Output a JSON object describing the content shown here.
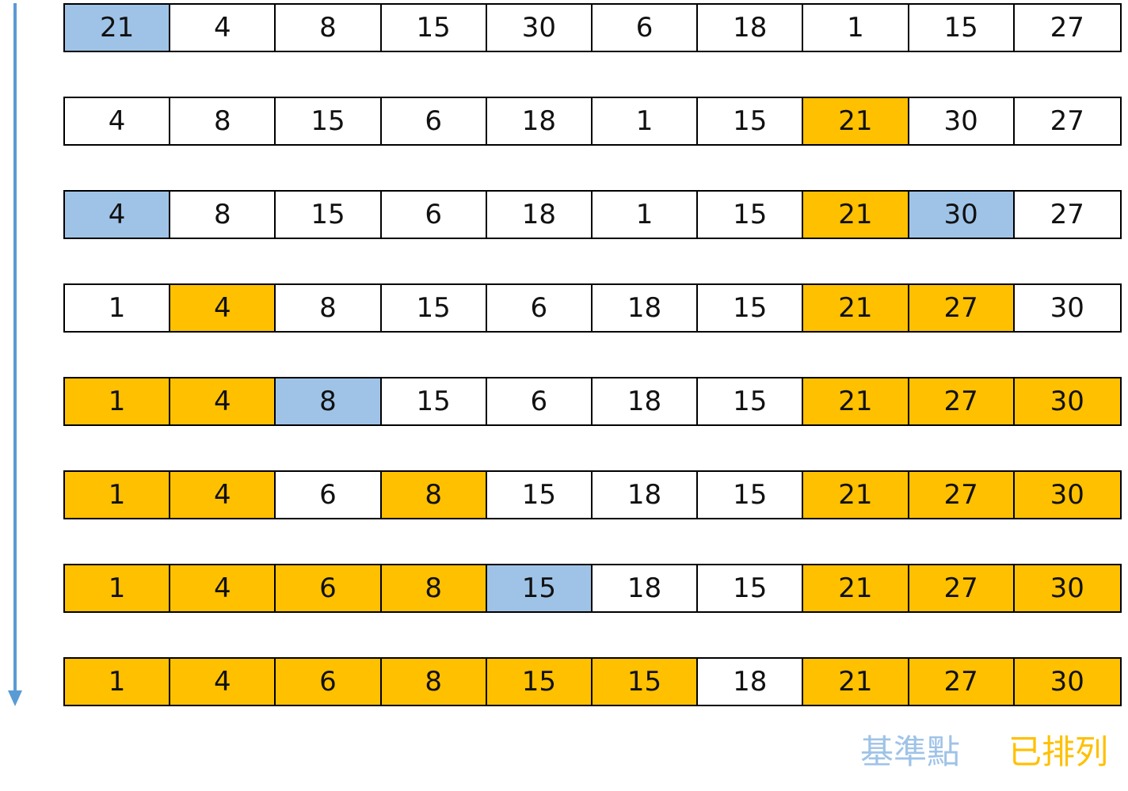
{
  "colors": {
    "pivot": "#9fc3e7",
    "sorted": "#ffc000",
    "unsorted": "#ffffff",
    "arrow": "#5b9bd5"
  },
  "steps": [
    {
      "cells": [
        {
          "value": "21",
          "state": "pivot"
        },
        {
          "value": "4",
          "state": "none"
        },
        {
          "value": "8",
          "state": "none"
        },
        {
          "value": "15",
          "state": "none"
        },
        {
          "value": "30",
          "state": "none"
        },
        {
          "value": "6",
          "state": "none"
        },
        {
          "value": "18",
          "state": "none"
        },
        {
          "value": "1",
          "state": "none"
        },
        {
          "value": "15",
          "state": "none"
        },
        {
          "value": "27",
          "state": "none"
        }
      ]
    },
    {
      "cells": [
        {
          "value": "4",
          "state": "none"
        },
        {
          "value": "8",
          "state": "none"
        },
        {
          "value": "15",
          "state": "none"
        },
        {
          "value": "6",
          "state": "none"
        },
        {
          "value": "18",
          "state": "none"
        },
        {
          "value": "1",
          "state": "none"
        },
        {
          "value": "15",
          "state": "none"
        },
        {
          "value": "21",
          "state": "sorted"
        },
        {
          "value": "30",
          "state": "none"
        },
        {
          "value": "27",
          "state": "none"
        }
      ]
    },
    {
      "cells": [
        {
          "value": "4",
          "state": "pivot"
        },
        {
          "value": "8",
          "state": "none"
        },
        {
          "value": "15",
          "state": "none"
        },
        {
          "value": "6",
          "state": "none"
        },
        {
          "value": "18",
          "state": "none"
        },
        {
          "value": "1",
          "state": "none"
        },
        {
          "value": "15",
          "state": "none"
        },
        {
          "value": "21",
          "state": "sorted"
        },
        {
          "value": "30",
          "state": "pivot"
        },
        {
          "value": "27",
          "state": "none"
        }
      ]
    },
    {
      "cells": [
        {
          "value": "1",
          "state": "none"
        },
        {
          "value": "4",
          "state": "sorted"
        },
        {
          "value": "8",
          "state": "none"
        },
        {
          "value": "15",
          "state": "none"
        },
        {
          "value": "6",
          "state": "none"
        },
        {
          "value": "18",
          "state": "none"
        },
        {
          "value": "15",
          "state": "none"
        },
        {
          "value": "21",
          "state": "sorted"
        },
        {
          "value": "27",
          "state": "sorted"
        },
        {
          "value": "30",
          "state": "none"
        }
      ]
    },
    {
      "cells": [
        {
          "value": "1",
          "state": "sorted"
        },
        {
          "value": "4",
          "state": "sorted"
        },
        {
          "value": "8",
          "state": "pivot"
        },
        {
          "value": "15",
          "state": "none"
        },
        {
          "value": "6",
          "state": "none"
        },
        {
          "value": "18",
          "state": "none"
        },
        {
          "value": "15",
          "state": "none"
        },
        {
          "value": "21",
          "state": "sorted"
        },
        {
          "value": "27",
          "state": "sorted"
        },
        {
          "value": "30",
          "state": "sorted"
        }
      ]
    },
    {
      "cells": [
        {
          "value": "1",
          "state": "sorted"
        },
        {
          "value": "4",
          "state": "sorted"
        },
        {
          "value": "6",
          "state": "none"
        },
        {
          "value": "8",
          "state": "sorted"
        },
        {
          "value": "15",
          "state": "none"
        },
        {
          "value": "18",
          "state": "none"
        },
        {
          "value": "15",
          "state": "none"
        },
        {
          "value": "21",
          "state": "sorted"
        },
        {
          "value": "27",
          "state": "sorted"
        },
        {
          "value": "30",
          "state": "sorted"
        }
      ]
    },
    {
      "cells": [
        {
          "value": "1",
          "state": "sorted"
        },
        {
          "value": "4",
          "state": "sorted"
        },
        {
          "value": "6",
          "state": "sorted"
        },
        {
          "value": "8",
          "state": "sorted"
        },
        {
          "value": "15",
          "state": "pivot"
        },
        {
          "value": "18",
          "state": "none"
        },
        {
          "value": "15",
          "state": "none"
        },
        {
          "value": "21",
          "state": "sorted"
        },
        {
          "value": "27",
          "state": "sorted"
        },
        {
          "value": "30",
          "state": "sorted"
        }
      ]
    },
    {
      "cells": [
        {
          "value": "1",
          "state": "sorted"
        },
        {
          "value": "4",
          "state": "sorted"
        },
        {
          "value": "6",
          "state": "sorted"
        },
        {
          "value": "8",
          "state": "sorted"
        },
        {
          "value": "15",
          "state": "sorted"
        },
        {
          "value": "15",
          "state": "sorted"
        },
        {
          "value": "18",
          "state": "none"
        },
        {
          "value": "21",
          "state": "sorted"
        },
        {
          "value": "27",
          "state": "sorted"
        },
        {
          "value": "30",
          "state": "sorted"
        }
      ]
    }
  ],
  "legend": {
    "pivot_label": "基準點",
    "sorted_label": "已排列"
  }
}
